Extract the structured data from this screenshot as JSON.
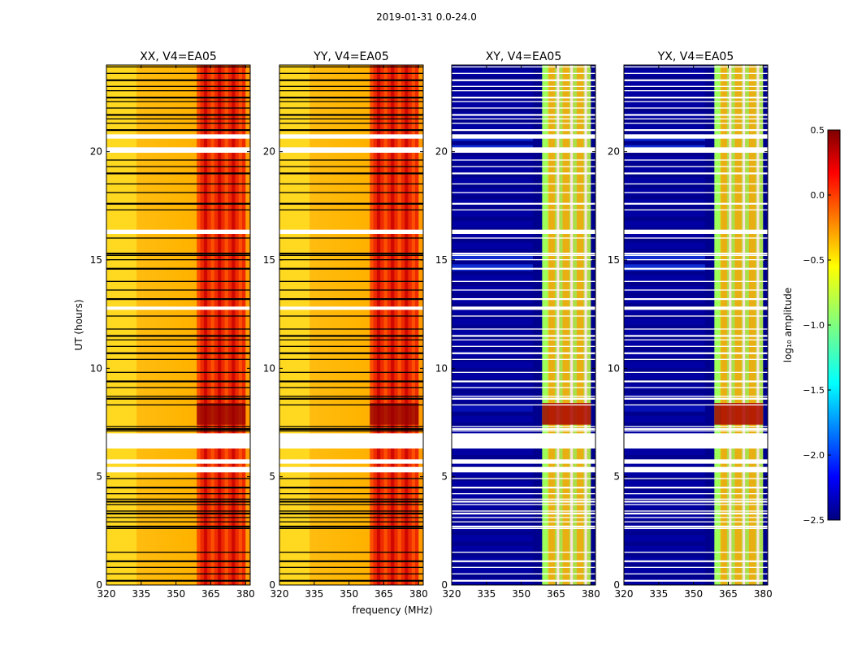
{
  "figure": {
    "title": "2019-01-31 0.0-24.0"
  },
  "chart_data": {
    "type": "heatmap",
    "title": "2019-01-31 0.0-24.0",
    "xlabel": "frequency (MHz)",
    "ylabel": "UT (hours)",
    "xlim": [
      320,
      382
    ],
    "ylim": [
      0,
      24
    ],
    "xticks": [
      "320",
      "335",
      "350",
      "365",
      "380"
    ],
    "yticks": [
      "0",
      "5",
      "10",
      "15",
      "20"
    ],
    "panels": [
      {
        "title": "XX, V4=EA05",
        "kind": "parallel"
      },
      {
        "title": "YY, V4=EA05",
        "kind": "parallel"
      },
      {
        "title": "XY, V4=EA05",
        "kind": "cross"
      },
      {
        "title": "YX, V4=EA05",
        "kind": "cross"
      }
    ],
    "rfi_band_mhz": [
      359,
      380
    ],
    "flagged_spans_ut": [
      [
        6.3,
        7.0
      ],
      [
        5.6,
        5.8
      ],
      [
        5.2,
        5.45
      ],
      [
        16.2,
        16.4
      ],
      [
        19.95,
        20.2
      ],
      [
        20.6,
        20.8
      ],
      [
        12.7,
        12.85
      ]
    ],
    "flagged_lines_ut": [
      0.2,
      0.5,
      0.8,
      1.1,
      1.5,
      2.6,
      2.7,
      2.9,
      3.1,
      3.3,
      3.4,
      3.7,
      3.85,
      3.95,
      4.2,
      4.5,
      4.9,
      7.1,
      7.2,
      7.3,
      8.3,
      8.6,
      8.7,
      9.1,
      9.4,
      9.8,
      10.4,
      10.7,
      11.0,
      11.3,
      11.5,
      11.8,
      12.4,
      13.2,
      13.6,
      14.0,
      14.6,
      15.0,
      15.2,
      15.3,
      16.0,
      17.3,
      17.6,
      18.1,
      18.5,
      19.0,
      19.3,
      19.6,
      21.0,
      21.3,
      21.5,
      21.7,
      22.0,
      22.3,
      22.5,
      22.8,
      23.0,
      23.3,
      23.6,
      23.9
    ],
    "colorbar": {
      "label": "log₁₀ amplitude",
      "range": [
        -2.5,
        0.5
      ],
      "ticks": [
        "0.5",
        "0.0",
        "−0.5",
        "−1.0",
        "−1.5",
        "−2.0",
        "−2.5"
      ],
      "colormap": "jet"
    }
  }
}
